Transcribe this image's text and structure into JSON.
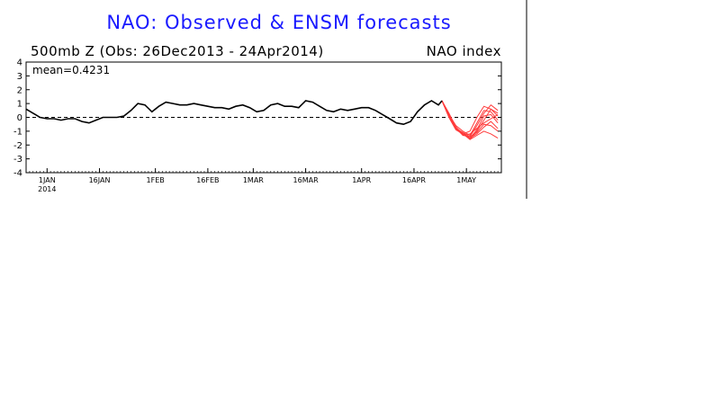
{
  "chart_data": {
    "type": "line",
    "title": "NAO: Observed & ENSM forecasts",
    "subtitle_left": "500mb Z (Obs: 26Dec2013 - 24Apr2014)",
    "subtitle_right": "NAO index",
    "annotation": "mean=0.4231",
    "ylim": [
      -4,
      4
    ],
    "yticks": [
      "4",
      "3",
      "2",
      "1",
      "0",
      "-1",
      "-2",
      "-3",
      "-4"
    ],
    "xlim": [
      "2013-12-26",
      "2014-05-11"
    ],
    "xticks": [
      {
        "date": "2014-01-01",
        "label": "1JAN",
        "sublabel": "2014"
      },
      {
        "date": "2014-01-16",
        "label": "16JAN",
        "sublabel": ""
      },
      {
        "date": "2014-02-01",
        "label": "1FEB",
        "sublabel": ""
      },
      {
        "date": "2014-02-16",
        "label": "16FEB",
        "sublabel": ""
      },
      {
        "date": "2014-03-01",
        "label": "1MAR",
        "sublabel": ""
      },
      {
        "date": "2014-03-16",
        "label": "16MAR",
        "sublabel": ""
      },
      {
        "date": "2014-04-01",
        "label": "1APR",
        "sublabel": ""
      },
      {
        "date": "2014-04-16",
        "label": "16APR",
        "sublabel": ""
      },
      {
        "date": "2014-05-01",
        "label": "1MAY",
        "sublabel": ""
      }
    ],
    "zero_line": "dashed",
    "colors": {
      "observed": "#000000",
      "forecast": "#ff3b3b",
      "title": "#1a1aff"
    },
    "observed": {
      "x": [
        "2013-12-26",
        "2013-12-28",
        "2013-12-30",
        "2014-01-01",
        "2014-01-03",
        "2014-01-05",
        "2014-01-07",
        "2014-01-09",
        "2014-01-11",
        "2014-01-13",
        "2014-01-15",
        "2014-01-17",
        "2014-01-19",
        "2014-01-21",
        "2014-01-23",
        "2014-01-25",
        "2014-01-27",
        "2014-01-29",
        "2014-01-31",
        "2014-02-02",
        "2014-02-04",
        "2014-02-06",
        "2014-02-08",
        "2014-02-10",
        "2014-02-12",
        "2014-02-14",
        "2014-02-16",
        "2014-02-18",
        "2014-02-20",
        "2014-02-22",
        "2014-02-24",
        "2014-02-26",
        "2014-02-28",
        "2014-03-02",
        "2014-03-04",
        "2014-03-06",
        "2014-03-08",
        "2014-03-10",
        "2014-03-12",
        "2014-03-14",
        "2014-03-16",
        "2014-03-18",
        "2014-03-20",
        "2014-03-22",
        "2014-03-24",
        "2014-03-26",
        "2014-03-28",
        "2014-03-30",
        "2014-04-01",
        "2014-04-03",
        "2014-04-05",
        "2014-04-07",
        "2014-04-09",
        "2014-04-11",
        "2014-04-13",
        "2014-04-15",
        "2014-04-17",
        "2014-04-19",
        "2014-04-21",
        "2014-04-23",
        "2014-04-24"
      ],
      "y": [
        0.6,
        0.3,
        0.0,
        -0.1,
        -0.1,
        -0.2,
        -0.1,
        -0.1,
        -0.3,
        -0.4,
        -0.2,
        0.0,
        0.0,
        0.0,
        0.1,
        0.5,
        1.0,
        0.9,
        0.4,
        0.8,
        1.1,
        1.0,
        0.9,
        0.9,
        1.0,
        0.9,
        0.8,
        0.7,
        0.7,
        0.6,
        0.8,
        0.9,
        0.7,
        0.4,
        0.5,
        0.9,
        1.0,
        0.8,
        0.8,
        0.7,
        1.2,
        1.1,
        0.8,
        0.5,
        0.4,
        0.6,
        0.5,
        0.6,
        0.7,
        0.7,
        0.5,
        0.2,
        -0.1,
        -0.4,
        -0.5,
        -0.3,
        0.4,
        0.9,
        1.2,
        0.9,
        1.2
      ]
    },
    "forecast_members": [
      {
        "x": [
          "2014-04-24",
          "2014-04-26",
          "2014-04-28",
          "2014-04-30",
          "2014-05-02",
          "2014-05-04",
          "2014-05-06",
          "2014-05-08",
          "2014-05-10"
        ],
        "y": [
          1.2,
          0.2,
          -0.7,
          -1.2,
          -1.6,
          -1.0,
          -0.2,
          0.6,
          0.3
        ]
      },
      {
        "x": [
          "2014-04-24",
          "2014-04-26",
          "2014-04-28",
          "2014-04-30",
          "2014-05-02",
          "2014-05-04",
          "2014-05-06",
          "2014-05-08",
          "2014-05-10"
        ],
        "y": [
          1.2,
          0.1,
          -0.8,
          -1.3,
          -1.4,
          -0.6,
          0.3,
          0.9,
          0.5
        ]
      },
      {
        "x": [
          "2014-04-24",
          "2014-04-26",
          "2014-04-28",
          "2014-04-30",
          "2014-05-02",
          "2014-05-04",
          "2014-05-06",
          "2014-05-08",
          "2014-05-10"
        ],
        "y": [
          1.2,
          0.0,
          -0.9,
          -1.2,
          -1.5,
          -1.2,
          -0.7,
          -0.3,
          -0.8
        ]
      },
      {
        "x": [
          "2014-04-24",
          "2014-04-26",
          "2014-04-28",
          "2014-04-30",
          "2014-05-02",
          "2014-05-04",
          "2014-05-06",
          "2014-05-08",
          "2014-05-10"
        ],
        "y": [
          1.2,
          0.2,
          -0.6,
          -1.0,
          -1.3,
          -0.4,
          0.5,
          0.4,
          -0.2
        ]
      },
      {
        "x": [
          "2014-04-24",
          "2014-04-26",
          "2014-04-28",
          "2014-04-30",
          "2014-05-02",
          "2014-05-04",
          "2014-05-06",
          "2014-05-08",
          "2014-05-10"
        ],
        "y": [
          1.2,
          0.1,
          -0.8,
          -1.1,
          -1.6,
          -1.3,
          -1.0,
          -1.2,
          -1.5
        ]
      },
      {
        "x": [
          "2014-04-24",
          "2014-04-26",
          "2014-04-28",
          "2014-04-30",
          "2014-05-02",
          "2014-05-04",
          "2014-05-06",
          "2014-05-08",
          "2014-05-10"
        ],
        "y": [
          1.2,
          0.3,
          -0.7,
          -1.3,
          -1.2,
          -0.8,
          -0.4,
          -0.1,
          0.2
        ]
      },
      {
        "x": [
          "2014-04-24",
          "2014-04-26",
          "2014-04-28",
          "2014-04-30",
          "2014-05-02",
          "2014-05-04",
          "2014-05-06",
          "2014-05-08",
          "2014-05-10"
        ],
        "y": [
          1.2,
          0.0,
          -0.9,
          -1.2,
          -1.0,
          0.0,
          0.8,
          0.6,
          0.1
        ]
      },
      {
        "x": [
          "2014-04-24",
          "2014-04-26",
          "2014-04-28",
          "2014-04-30",
          "2014-05-02",
          "2014-05-04",
          "2014-05-06",
          "2014-05-08",
          "2014-05-10"
        ],
        "y": [
          1.2,
          0.1,
          -0.8,
          -1.1,
          -1.4,
          -1.1,
          -0.5,
          -0.6,
          -1.0
        ]
      },
      {
        "x": [
          "2014-04-24",
          "2014-04-26",
          "2014-04-28",
          "2014-04-30",
          "2014-05-02",
          "2014-05-04",
          "2014-05-06",
          "2014-05-08",
          "2014-05-10"
        ],
        "y": [
          1.2,
          0.2,
          -0.7,
          -1.2,
          -1.5,
          -0.9,
          0.1,
          0.2,
          -0.4
        ]
      }
    ]
  }
}
